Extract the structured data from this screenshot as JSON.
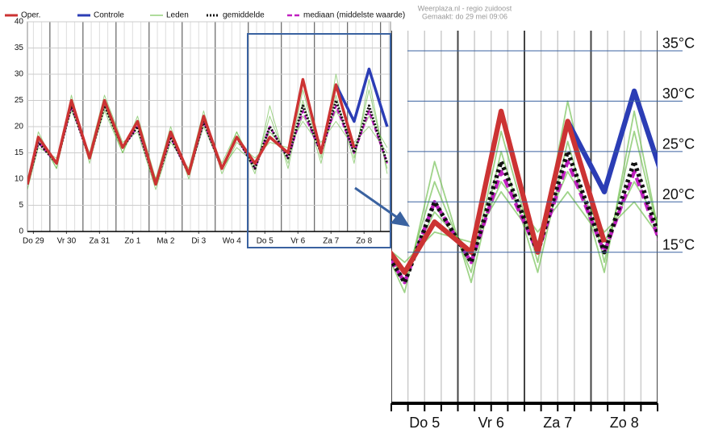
{
  "chart_data": {
    "type": "line",
    "source": "Weerplaza.nl - regio zuidoost",
    "created": "Gemaakt: do 29 mei 09:06",
    "x": [
      0.32,
      0.65,
      1.2,
      1.65,
      2.2,
      2.65,
      3.2,
      3.65,
      4.2,
      4.65,
      5.2,
      5.65,
      6.2,
      6.65,
      7.2,
      7.65,
      8.2,
      8.65,
      9.2,
      9.65,
      10.2,
      10.65,
      11.2
    ],
    "series": [
      {
        "name": "Oper.",
        "color": "#cc3333",
        "width": 3.5,
        "values": [
          9,
          18,
          13,
          25,
          14,
          25,
          16,
          21,
          9,
          19,
          11,
          22,
          12,
          18,
          13,
          18,
          15,
          29,
          15,
          28,
          16,
          null,
          null
        ]
      },
      {
        "name": "Controle",
        "color": "#2b3db5",
        "width": 3.5,
        "values": [
          null,
          null,
          null,
          null,
          null,
          null,
          null,
          null,
          null,
          null,
          null,
          null,
          null,
          null,
          null,
          null,
          null,
          null,
          null,
          28,
          21,
          31,
          20
        ]
      },
      {
        "name": "Leden",
        "color": "#5fb83a",
        "width": 1,
        "members": [
          [
            9,
            19,
            12,
            26,
            13,
            24,
            15,
            22,
            10,
            20,
            10,
            21,
            13,
            19,
            12,
            22,
            13,
            27,
            14,
            30,
            14,
            27,
            12
          ],
          [
            8,
            16,
            14,
            23,
            15,
            26,
            17,
            19,
            8,
            17,
            12,
            23,
            11,
            17,
            14,
            17,
            16,
            21,
            16,
            23,
            17,
            20,
            15
          ],
          [
            10,
            18,
            12,
            24,
            14,
            23,
            15,
            21,
            9,
            19,
            11,
            20,
            12,
            19,
            11,
            24,
            12,
            25,
            13,
            26,
            13,
            29,
            11
          ],
          [
            9,
            17,
            13,
            25,
            14,
            24,
            16,
            20,
            10,
            18,
            11,
            22,
            12,
            16,
            13,
            19,
            15,
            22,
            17,
            21,
            16,
            22,
            16
          ]
        ]
      },
      {
        "name": "gemiddelde",
        "color": "#111111",
        "width": 3,
        "dash": "2 2",
        "values": [
          9,
          17,
          13,
          24,
          14,
          24,
          16,
          20,
          9,
          18,
          11,
          21,
          12,
          18,
          12,
          20,
          14,
          24,
          15,
          25,
          15,
          24,
          13
        ]
      },
      {
        "name": "mediaan (middelste waarde)",
        "color": "#c020c0",
        "width": 2.5,
        "dash": "6 3",
        "values": [
          9,
          17,
          13,
          24,
          14,
          25,
          16,
          20,
          9,
          18,
          11,
          21,
          12,
          18,
          12,
          20,
          14,
          23,
          15,
          24,
          15,
          23,
          13
        ]
      }
    ],
    "xlim": [
      0.32,
      11.3
    ],
    "xticks": [
      {
        "value": 0.5,
        "label": "Do 29"
      },
      {
        "value": 1.5,
        "label": "Vr 30"
      },
      {
        "value": 2.5,
        "label": "Za 31"
      },
      {
        "value": 3.5,
        "label": "Zo 1"
      },
      {
        "value": 4.5,
        "label": "Ma 2"
      },
      {
        "value": 5.5,
        "label": "Di 3"
      },
      {
        "value": 6.5,
        "label": "Wo 4"
      },
      {
        "value": 7.5,
        "label": "Do 5"
      },
      {
        "value": 8.5,
        "label": "Vr 6"
      },
      {
        "value": 9.5,
        "label": "Za 7"
      },
      {
        "value": 10.5,
        "label": "Zo 8"
      }
    ],
    "ylim": [
      0,
      40
    ],
    "yticks": [
      0,
      5,
      10,
      15,
      20,
      25,
      30,
      35,
      40
    ],
    "grid": true,
    "inset": {
      "xlim": [
        7.0,
        11.0
      ],
      "ylim": [
        0,
        37
      ],
      "yticks": [
        {
          "value": 15,
          "label": "15°C"
        },
        {
          "value": 20,
          "label": "20°C"
        },
        {
          "value": 25,
          "label": "25°C"
        },
        {
          "value": 30,
          "label": "30°C"
        },
        {
          "value": 35,
          "label": "35°C"
        }
      ]
    }
  }
}
